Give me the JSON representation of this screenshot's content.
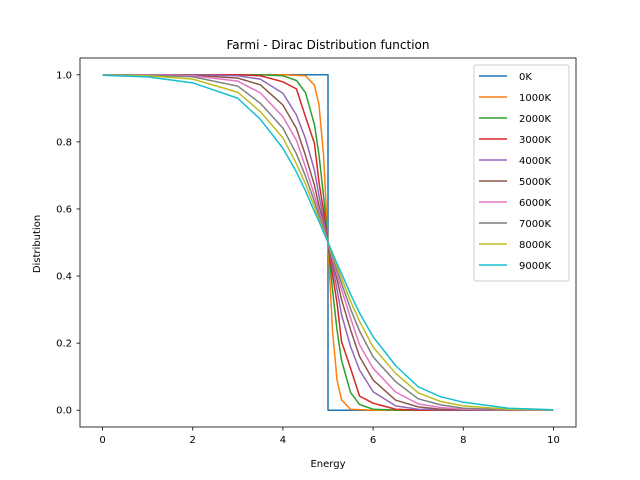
{
  "chart_data": {
    "type": "line",
    "title": "Farmi - Dirac Distribution function",
    "xlabel": "Energy",
    "ylabel": "Distribution",
    "xlim": [
      -0.5,
      10.5
    ],
    "ylim": [
      -0.05,
      1.05
    ],
    "xticks": [
      0,
      2,
      4,
      6,
      8,
      10
    ],
    "yticks": [
      0.0,
      0.2,
      0.4,
      0.6,
      0.8,
      1.0
    ],
    "xtick_labels": [
      "0",
      "2",
      "4",
      "6",
      "8",
      "10"
    ],
    "ytick_labels": [
      "0.0",
      "0.2",
      "0.4",
      "0.6",
      "0.8",
      "1.0"
    ],
    "grid": false,
    "legend_position": "top-right",
    "series": [
      {
        "name": "0K",
        "color": "#1f77b4",
        "step": true,
        "x": [
          0,
          5,
          5,
          10
        ],
        "y": [
          1,
          1,
          0,
          0
        ]
      },
      {
        "name": "1000K",
        "color": "#ff7f0e",
        "x": [
          0,
          1,
          2,
          3,
          4,
          4.5,
          4.7,
          4.8,
          4.9,
          5,
          5.1,
          5.2,
          5.3,
          5.5,
          6,
          7,
          8,
          9,
          10
        ],
        "y": [
          1,
          1,
          1,
          1,
          1,
          0.997,
          0.969,
          0.91,
          0.762,
          0.5,
          0.238,
          0.09,
          0.031,
          0.003,
          0,
          0,
          0,
          0,
          0
        ]
      },
      {
        "name": "2000K",
        "color": "#2ca02c",
        "x": [
          0,
          1,
          2,
          3,
          3.5,
          4,
          4.3,
          4.5,
          4.7,
          4.8,
          4.9,
          5,
          5.1,
          5.2,
          5.3,
          5.5,
          5.7,
          6,
          6.5,
          7,
          8,
          9,
          10
        ],
        "y": [
          1,
          1,
          1,
          1,
          1.0,
          0.997,
          0.983,
          0.947,
          0.851,
          0.761,
          0.641,
          0.5,
          0.359,
          0.239,
          0.149,
          0.053,
          0.017,
          0.003,
          0.0002,
          0,
          0,
          0,
          0
        ]
      },
      {
        "name": "3000K",
        "color": "#d62728",
        "x": [
          0,
          1,
          2,
          3,
          3.5,
          4,
          4.3,
          4.5,
          4.7,
          4.8,
          4.9,
          5,
          5.1,
          5.2,
          5.3,
          5.5,
          5.7,
          6,
          6.5,
          7,
          8,
          9,
          10
        ],
        "y": [
          1,
          1,
          1,
          1.0,
          0.997,
          0.979,
          0.958,
          0.875,
          0.795,
          0.68,
          0.595,
          0.5,
          0.405,
          0.32,
          0.205,
          0.125,
          0.042,
          0.021,
          0.003,
          0.0004,
          0,
          0,
          0
        ]
      },
      {
        "name": "4000K",
        "color": "#9467bd",
        "x": [
          0,
          1,
          2,
          3,
          3.5,
          4,
          4.3,
          4.5,
          4.7,
          4.8,
          4.9,
          5,
          5.1,
          5.2,
          5.3,
          5.5,
          5.7,
          6,
          6.5,
          7,
          8,
          9,
          10
        ],
        "y": [
          1,
          1,
          1.0,
          0.997,
          0.987,
          0.945,
          0.88,
          0.81,
          0.715,
          0.64,
          0.571,
          0.5,
          0.429,
          0.36,
          0.285,
          0.19,
          0.12,
          0.055,
          0.013,
          0.003,
          0.0002,
          0,
          0
        ]
      },
      {
        "name": "5000K",
        "color": "#8c564b",
        "x": [
          0,
          1,
          2,
          3,
          3.5,
          4,
          4.3,
          4.5,
          4.7,
          4.8,
          4.9,
          5,
          5.1,
          5.2,
          5.3,
          5.5,
          5.7,
          6,
          6.5,
          7,
          7.5,
          8,
          9,
          10
        ],
        "y": [
          1,
          1.0,
          0.999,
          0.99,
          0.97,
          0.91,
          0.84,
          0.76,
          0.67,
          0.61,
          0.557,
          0.5,
          0.443,
          0.39,
          0.33,
          0.24,
          0.16,
          0.09,
          0.03,
          0.01,
          0.003,
          0.001,
          0,
          0
        ]
      },
      {
        "name": "6000K",
        "color": "#e377c2",
        "x": [
          0,
          1,
          2,
          3,
          3.5,
          4,
          4.3,
          4.5,
          4.7,
          4.8,
          4.9,
          5,
          5.1,
          5.2,
          5.3,
          5.5,
          5.7,
          6,
          6.5,
          7,
          7.5,
          8,
          9,
          10
        ],
        "y": [
          1,
          1.0,
          0.997,
          0.981,
          0.946,
          0.875,
          0.805,
          0.725,
          0.64,
          0.595,
          0.548,
          0.5,
          0.452,
          0.405,
          0.36,
          0.275,
          0.195,
          0.125,
          0.054,
          0.019,
          0.008,
          0.003,
          0.0005,
          0
        ]
      },
      {
        "name": "7000K",
        "color": "#7f7f7f",
        "x": [
          0,
          1,
          2,
          3,
          3.5,
          4,
          4.3,
          4.5,
          4.7,
          4.8,
          4.9,
          5,
          5.1,
          5.2,
          5.3,
          5.5,
          5.7,
          6,
          6.5,
          7,
          7.5,
          8,
          9,
          10
        ],
        "y": [
          0.9997,
          0.9987,
          0.994,
          0.966,
          0.915,
          0.841,
          0.764,
          0.698,
          0.622,
          0.582,
          0.541,
          0.5,
          0.459,
          0.418,
          0.378,
          0.302,
          0.236,
          0.159,
          0.085,
          0.034,
          0.016,
          0.006,
          0.0013,
          0.0003
        ]
      },
      {
        "name": "8000K",
        "color": "#bcbd22",
        "x": [
          0,
          1,
          2,
          3,
          3.5,
          4,
          4.3,
          4.5,
          4.7,
          4.8,
          4.9,
          5,
          5.1,
          5.2,
          5.3,
          5.5,
          5.7,
          6,
          6.5,
          7,
          7.5,
          8,
          9,
          10
        ],
        "y": [
          0.9993,
          0.997,
          0.987,
          0.948,
          0.89,
          0.812,
          0.735,
          0.675,
          0.606,
          0.571,
          0.536,
          0.5,
          0.464,
          0.429,
          0.394,
          0.325,
          0.265,
          0.188,
          0.11,
          0.052,
          0.026,
          0.013,
          0.003,
          0.0007
        ]
      },
      {
        "name": "9000K",
        "color": "#17becf",
        "x": [
          0,
          1,
          2,
          3,
          3.5,
          4,
          4.3,
          4.5,
          4.7,
          4.8,
          4.9,
          5,
          5.1,
          5.2,
          5.3,
          5.5,
          5.7,
          6,
          6.5,
          7,
          7.5,
          8,
          9,
          10
        ],
        "y": [
          0.9984,
          0.9937,
          0.976,
          0.93,
          0.867,
          0.781,
          0.71,
          0.654,
          0.592,
          0.563,
          0.531,
          0.5,
          0.469,
          0.437,
          0.408,
          0.346,
          0.29,
          0.219,
          0.133,
          0.07,
          0.04,
          0.024,
          0.006,
          0.0016
        ]
      }
    ]
  }
}
